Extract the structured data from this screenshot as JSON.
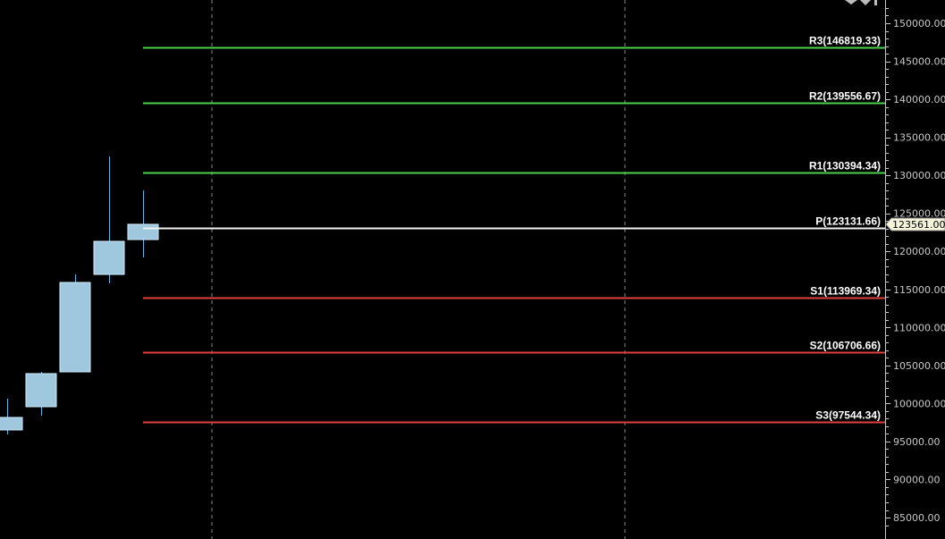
{
  "chart_data": {
    "type": "candlestick",
    "ylim": [
      84000,
      152000
    ],
    "y_ticks": [
      "150000.00",
      "145000.00",
      "140000.00",
      "135000.00",
      "130000.00",
      "125000.00",
      "120000.00",
      "115000.00",
      "110000.00",
      "105000.00",
      "100000.00",
      "95000.00",
      "90000.00",
      "85000.00"
    ],
    "candles": [
      {
        "open": 96522,
        "high": 100635,
        "low": 95934,
        "close": 98167
      },
      {
        "open": 99577,
        "high": 104161,
        "low": 98402,
        "close": 103926
      },
      {
        "open": 104161,
        "high": 116972,
        "low": 104161,
        "close": 115915
      },
      {
        "open": 116972,
        "high": 132487,
        "low": 115798,
        "close": 121321
      },
      {
        "open": 121556,
        "high": 128021,
        "low": 119206,
        "close": 123561
      }
    ],
    "pivot_levels": [
      {
        "name": "R3",
        "value": 146819.33,
        "label": "R3(146819.33)",
        "color": "#4cd24c"
      },
      {
        "name": "R2",
        "value": 139556.67,
        "label": "R2(139556.67)",
        "color": "#4cd24c"
      },
      {
        "name": "R1",
        "value": 130394.34,
        "label": "R1(130394.34)",
        "color": "#4cd24c"
      },
      {
        "name": "P",
        "value": 123131.66,
        "label": "P(123131.66)",
        "color": "#f0f0f0"
      },
      {
        "name": "S1",
        "value": 113969.34,
        "label": "S1(113969.34)",
        "color": "#e04040"
      },
      {
        "name": "S2",
        "value": 106706.66,
        "label": "S2(106706.66)",
        "color": "#e04040"
      },
      {
        "name": "S3",
        "value": 97544.34,
        "label": "S3(97544.34)",
        "color": "#e04040"
      }
    ],
    "current_price": {
      "value": 123561,
      "label": "123561.00"
    },
    "candle_color": "#9fc7dd",
    "wick_color": "#5ab8f0",
    "grid": "vertical-dashed"
  },
  "toolbar": {
    "icon": "scroll-arrows-icon"
  }
}
